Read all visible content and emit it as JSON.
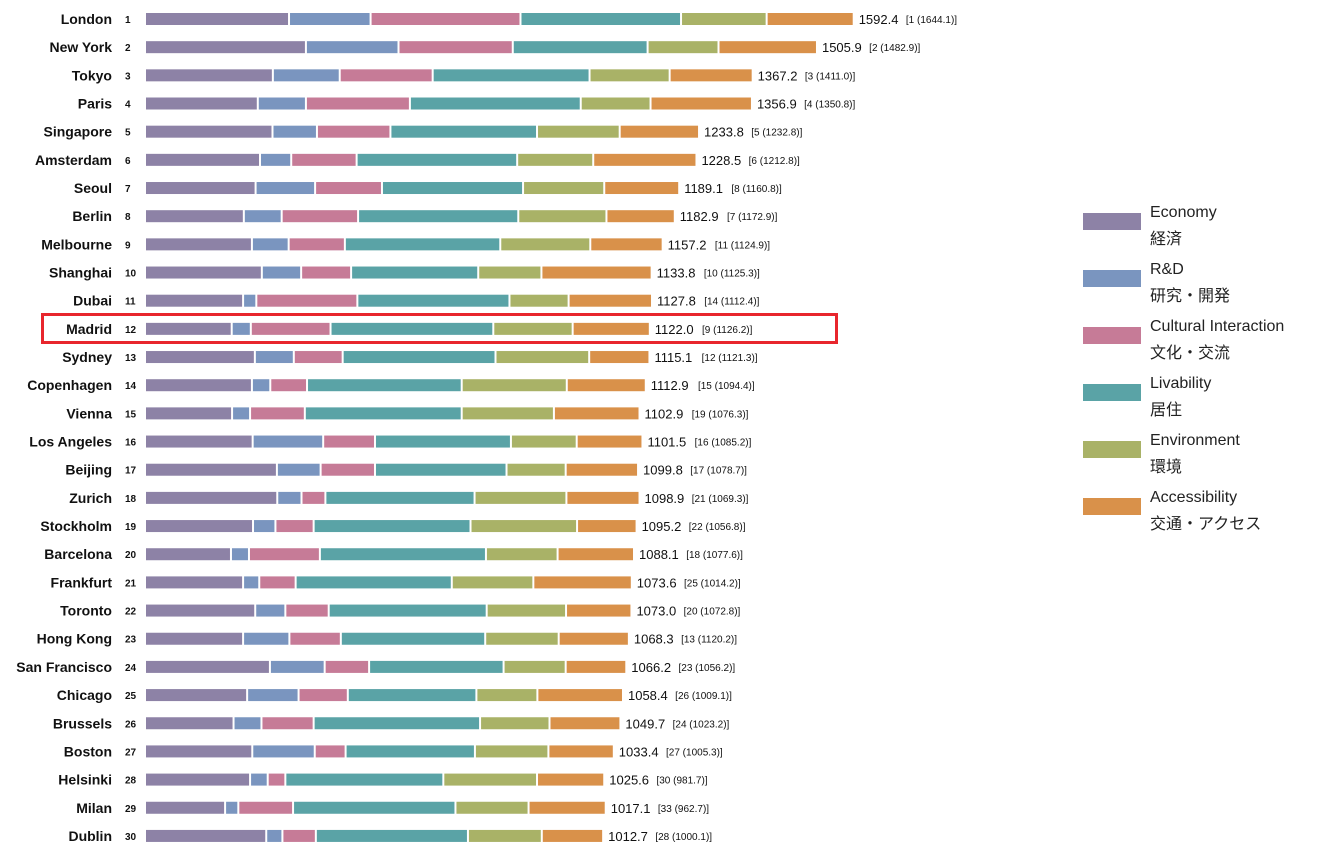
{
  "chart_data": {
    "type": "bar",
    "stacked": true,
    "orientation": "horizontal",
    "legend_position": "right",
    "series": [
      {
        "name": "Economy",
        "name_ja": "経済",
        "color": "#8d82a6"
      },
      {
        "name": "R&D",
        "name_ja": "研究・開発",
        "color": "#7a95bf"
      },
      {
        "name": "Cultural Interaction",
        "name_ja": "文化・交流",
        "color": "#c67b97"
      },
      {
        "name": "Livability",
        "name_ja": "居住",
        "color": "#5aa3a6"
      },
      {
        "name": "Environment",
        "name_ja": "環境",
        "color": "#a9b267"
      },
      {
        "name": "Accessibility",
        "name_ja": "交通・アクセス",
        "color": "#d9914a"
      }
    ],
    "rows": [
      {
        "city": "London",
        "rank": "1",
        "total": "1592.4",
        "prev": "[1 (1644.1)]",
        "values": [
          392,
          222,
          408,
          437,
          233,
          237
        ]
      },
      {
        "city": "New York",
        "rank": "2",
        "total": "1505.9",
        "prev": "[2 (1482.9)]",
        "values": [
          438,
          252,
          311,
          367,
          193,
          268
        ]
      },
      {
        "city": "Tokyo",
        "rank": "3",
        "total": "1367.2",
        "prev": "[3 (1411.0)]",
        "values": [
          348,
          182,
          253,
          427,
          218,
          226
        ]
      },
      {
        "city": "Paris",
        "rank": "4",
        "total": "1356.9",
        "prev": "[4 (1350.8)]",
        "values": [
          307,
          131,
          283,
          465,
          190,
          276
        ]
      },
      {
        "city": "Singapore",
        "rank": "5",
        "total": "1233.8",
        "prev": "[5 (1232.8)]",
        "values": [
          347,
          121,
          200,
          399,
          225,
          216
        ]
      },
      {
        "city": "Amsterdam",
        "rank": "6",
        "total": "1228.5",
        "prev": "[6 (1212.8)]",
        "values": [
          313,
          85,
          178,
          437,
          207,
          281
        ]
      },
      {
        "city": "Seoul",
        "rank": "7",
        "total": "1189.1",
        "prev": "[8 (1160.8)]",
        "values": [
          301,
          162,
          182,
          384,
          221,
          204
        ]
      },
      {
        "city": "Berlin",
        "rank": "8",
        "total": "1182.9",
        "prev": "[7 (1172.9)]",
        "values": [
          269,
          103,
          208,
          436,
          240,
          186
        ]
      },
      {
        "city": "Melbourne",
        "rank": "9",
        "total": "1157.2",
        "prev": "[11 (1124.9)]",
        "values": [
          291,
          100,
          153,
          423,
          245,
          197
        ]
      },
      {
        "city": "Shanghai",
        "rank": "10",
        "total": "1133.8",
        "prev": "[10 (1125.3)]",
        "values": [
          318,
          107,
          136,
          346,
          172,
          300
        ]
      },
      {
        "city": "Dubai",
        "rank": "11",
        "total": "1127.8",
        "prev": "[14 (1112.4)]",
        "values": [
          267,
          36,
          275,
          414,
          161,
          227
        ]
      },
      {
        "city": "Madrid",
        "rank": "12",
        "total": "1122.0",
        "prev": "[9 (1126.2)]",
        "values": [
          236,
          52,
          217,
          443,
          216,
          210
        ]
      },
      {
        "city": "Sydney",
        "rank": "13",
        "total": "1115.1",
        "prev": "[12 (1121.3)]",
        "values": [
          299,
          106,
          133,
          416,
          255,
          164
        ]
      },
      {
        "city": "Copenhagen",
        "rank": "14",
        "total": "1112.9",
        "prev": "[15 (1094.4)]",
        "values": [
          291,
          50,
          100,
          421,
          286,
          215
        ]
      },
      {
        "city": "Vienna",
        "rank": "15",
        "total": "1102.9",
        "prev": "[19 (1076.3)]",
        "values": [
          237,
          49,
          149,
          427,
          251,
          233
        ]
      },
      {
        "city": "Los Angeles",
        "rank": "16",
        "total": "1101.5",
        "prev": "[16 (1085.2)]",
        "values": [
          293,
          192,
          141,
          370,
          179,
          179
        ]
      },
      {
        "city": "Beijing",
        "rank": "17",
        "total": "1099.8",
        "prev": "[17 (1078.7)]",
        "values": [
          359,
          119,
          148,
          358,
          161,
          197
        ]
      },
      {
        "city": "Zurich",
        "rank": "18",
        "total": "1098.9",
        "prev": "[21 (1069.3)]",
        "values": [
          360,
          66,
          65,
          406,
          250,
          199
        ]
      },
      {
        "city": "Stockholm",
        "rank": "19",
        "total": "1095.2",
        "prev": "[22 (1056.8)]",
        "values": [
          294,
          61,
          104,
          427,
          290,
          162
        ]
      },
      {
        "city": "Barcelona",
        "rank": "20",
        "total": "1088.1",
        "prev": "[18 (1077.6)]",
        "values": [
          234,
          49,
          193,
          452,
          195,
          208
        ]
      },
      {
        "city": "Frankfurt",
        "rank": "21",
        "total": "1073.6",
        "prev": "[25 (1014.2)]",
        "values": [
          267,
          44,
          99,
          425,
          222,
          268
        ]
      },
      {
        "city": "Toronto",
        "rank": "22",
        "total": "1073.0",
        "prev": "[20 (1072.8)]",
        "values": [
          300,
          82,
          118,
          430,
          216,
          178
        ]
      },
      {
        "city": "Hong Kong",
        "rank": "23",
        "total": "1068.3",
        "prev": "[13 (1120.2)]",
        "values": [
          267,
          126,
          140,
          393,
          200,
          191
        ]
      },
      {
        "city": "San Francisco",
        "rank": "24",
        "total": "1066.2",
        "prev": "[23 (1056.2)]",
        "values": [
          340,
          149,
          121,
          366,
          169,
          165
        ]
      },
      {
        "city": "Chicago",
        "rank": "25",
        "total": "1058.4",
        "prev": "[26 (1009.1)]",
        "values": [
          278,
          140,
          134,
          350,
          166,
          233
        ]
      },
      {
        "city": "Brussels",
        "rank": "26",
        "total": "1049.7",
        "prev": "[24 (1023.2)]",
        "values": [
          241,
          76,
          142,
          453,
          189,
          193
        ]
      },
      {
        "city": "Boston",
        "rank": "27",
        "total": "1033.4",
        "prev": "[27 (1005.3)]",
        "values": [
          292,
          170,
          84,
          352,
          200,
          178
        ]
      },
      {
        "city": "Helsinki",
        "rank": "28",
        "total": "1025.6",
        "prev": "[30 (981.7)]",
        "values": [
          286,
          48,
          48,
          430,
          255,
          183
        ]
      },
      {
        "city": "Milan",
        "rank": "29",
        "total": "1017.1",
        "prev": "[33 (962.7)]",
        "values": [
          218,
          36,
          149,
          442,
          199,
          210
        ]
      },
      {
        "city": "Dublin",
        "rank": "30",
        "total": "1012.7",
        "prev": "[28 (1000.1)]",
        "values": [
          330,
          44,
          91,
          414,
          201,
          167
        ]
      }
    ],
    "highlighted_city": "Madrid",
    "highlight_color": "#e8262d"
  }
}
